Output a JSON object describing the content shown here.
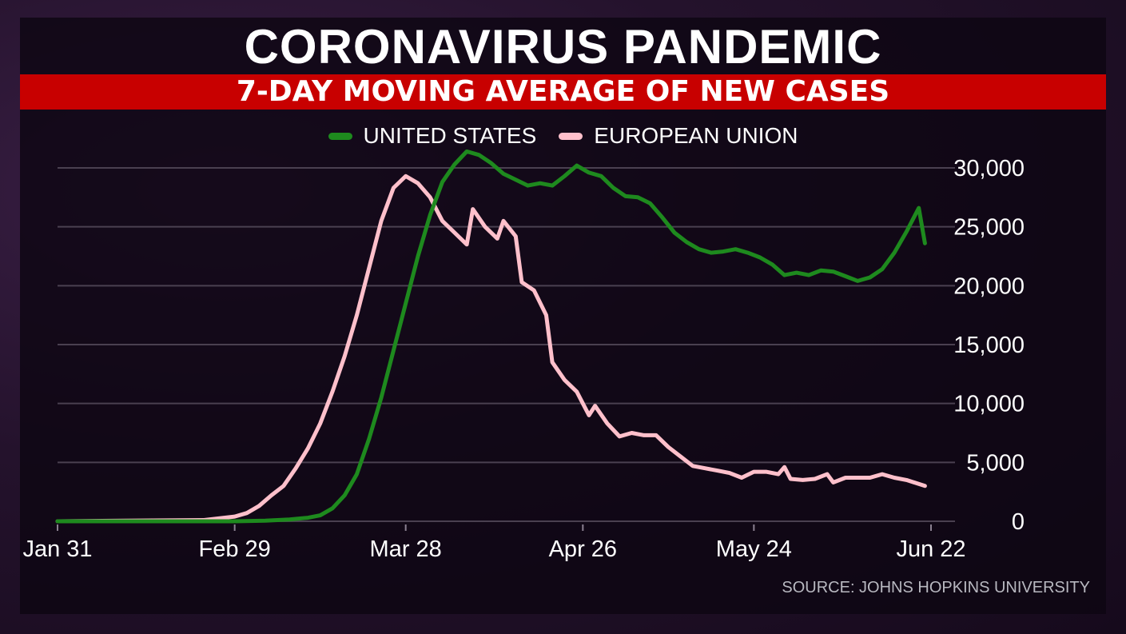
{
  "header": {
    "title": "CORONAVIRUS PANDEMIC",
    "subtitle": "7-DAY MOVING AVERAGE OF NEW CASES"
  },
  "source": "SOURCE: JOHNS HOPKINS UNIVERSITY",
  "colors": {
    "subtitle_bar": "#c80000",
    "us": "#1e8a1e",
    "eu": "#ffc0cb",
    "grid": "#4a4050"
  },
  "chart_data": {
    "type": "line",
    "title": "CORONAVIRUS PANDEMIC",
    "subtitle": "7-DAY MOVING AVERAGE OF NEW CASES",
    "x_ticks": [
      "Jan 31",
      "Feb 29",
      "Mar 28",
      "Apr 26",
      "May 24",
      "Jun 22"
    ],
    "y_ticks": [
      "0",
      "5,000",
      "10,000",
      "15,000",
      "20,000",
      "25,000",
      "30,000"
    ],
    "ylim": [
      0,
      30000
    ],
    "xlim": [
      "2020-01-31",
      "2020-06-22"
    ],
    "grid": true,
    "legend_position": "top-center",
    "series": [
      {
        "name": "UNITED STATES",
        "color": "#1e8a1e",
        "points": [
          [
            "2020-01-31",
            0
          ],
          [
            "2020-02-29",
            0
          ],
          [
            "2020-03-05",
            50
          ],
          [
            "2020-03-09",
            150
          ],
          [
            "2020-03-12",
            300
          ],
          [
            "2020-03-14",
            500
          ],
          [
            "2020-03-16",
            1100
          ],
          [
            "2020-03-18",
            2200
          ],
          [
            "2020-03-20",
            4000
          ],
          [
            "2020-03-22",
            7000
          ],
          [
            "2020-03-24",
            10500
          ],
          [
            "2020-03-26",
            14500
          ],
          [
            "2020-03-28",
            18500
          ],
          [
            "2020-03-30",
            22500
          ],
          [
            "2020-04-01",
            26000
          ],
          [
            "2020-04-03",
            28800
          ],
          [
            "2020-04-05",
            30300
          ],
          [
            "2020-04-07",
            31400
          ],
          [
            "2020-04-09",
            31100
          ],
          [
            "2020-04-11",
            30400
          ],
          [
            "2020-04-13",
            29500
          ],
          [
            "2020-04-15",
            29000
          ],
          [
            "2020-04-17",
            28500
          ],
          [
            "2020-04-19",
            28700
          ],
          [
            "2020-04-21",
            28500
          ],
          [
            "2020-04-23",
            29300
          ],
          [
            "2020-04-25",
            30200
          ],
          [
            "2020-04-27",
            29600
          ],
          [
            "2020-04-29",
            29300
          ],
          [
            "2020-05-01",
            28300
          ],
          [
            "2020-05-03",
            27600
          ],
          [
            "2020-05-05",
            27500
          ],
          [
            "2020-05-07",
            27000
          ],
          [
            "2020-05-09",
            25800
          ],
          [
            "2020-05-11",
            24500
          ],
          [
            "2020-05-13",
            23700
          ],
          [
            "2020-05-15",
            23100
          ],
          [
            "2020-05-17",
            22800
          ],
          [
            "2020-05-19",
            22900
          ],
          [
            "2020-05-21",
            23100
          ],
          [
            "2020-05-23",
            22800
          ],
          [
            "2020-05-25",
            22400
          ],
          [
            "2020-05-27",
            21800
          ],
          [
            "2020-05-29",
            20900
          ],
          [
            "2020-05-31",
            21100
          ],
          [
            "2020-06-02",
            20900
          ],
          [
            "2020-06-04",
            21300
          ],
          [
            "2020-06-06",
            21200
          ],
          [
            "2020-06-08",
            20800
          ],
          [
            "2020-06-10",
            20400
          ],
          [
            "2020-06-12",
            20700
          ],
          [
            "2020-06-14",
            21400
          ],
          [
            "2020-06-16",
            22800
          ],
          [
            "2020-06-18",
            24600
          ],
          [
            "2020-06-20",
            26600
          ],
          [
            "2020-06-21",
            23600
          ]
        ]
      },
      {
        "name": "EUROPEAN UNION",
        "color": "#ffc0cb",
        "points": [
          [
            "2020-01-31",
            0
          ],
          [
            "2020-02-24",
            100
          ],
          [
            "2020-02-29",
            400
          ],
          [
            "2020-03-02",
            700
          ],
          [
            "2020-03-04",
            1300
          ],
          [
            "2020-03-06",
            2200
          ],
          [
            "2020-03-08",
            3000
          ],
          [
            "2020-03-10",
            4500
          ],
          [
            "2020-03-12",
            6200
          ],
          [
            "2020-03-14",
            8300
          ],
          [
            "2020-03-16",
            11000
          ],
          [
            "2020-03-18",
            14000
          ],
          [
            "2020-03-20",
            17500
          ],
          [
            "2020-03-22",
            21500
          ],
          [
            "2020-03-24",
            25500
          ],
          [
            "2020-03-26",
            28300
          ],
          [
            "2020-03-28",
            29300
          ],
          [
            "2020-03-30",
            28700
          ],
          [
            "2020-04-01",
            27500
          ],
          [
            "2020-04-03",
            25500
          ],
          [
            "2020-04-05",
            24500
          ],
          [
            "2020-04-07",
            23500
          ],
          [
            "2020-04-08",
            26500
          ],
          [
            "2020-04-10",
            25000
          ],
          [
            "2020-04-12",
            24000
          ],
          [
            "2020-04-13",
            25500
          ],
          [
            "2020-04-15",
            24200
          ],
          [
            "2020-04-16",
            20300
          ],
          [
            "2020-04-18",
            19600
          ],
          [
            "2020-04-20",
            17500
          ],
          [
            "2020-04-21",
            13500
          ],
          [
            "2020-04-23",
            12000
          ],
          [
            "2020-04-25",
            11000
          ],
          [
            "2020-04-27",
            9000
          ],
          [
            "2020-04-28",
            9800
          ],
          [
            "2020-04-30",
            8300
          ],
          [
            "2020-05-02",
            7200
          ],
          [
            "2020-05-04",
            7500
          ],
          [
            "2020-05-06",
            7300
          ],
          [
            "2020-05-08",
            7300
          ],
          [
            "2020-05-10",
            6300
          ],
          [
            "2020-05-12",
            5500
          ],
          [
            "2020-05-14",
            4700
          ],
          [
            "2020-05-16",
            4500
          ],
          [
            "2020-05-18",
            4300
          ],
          [
            "2020-05-20",
            4100
          ],
          [
            "2020-05-22",
            3700
          ],
          [
            "2020-05-24",
            4200
          ],
          [
            "2020-05-26",
            4200
          ],
          [
            "2020-05-28",
            4000
          ],
          [
            "2020-05-29",
            4600
          ],
          [
            "2020-05-30",
            3600
          ],
          [
            "2020-06-01",
            3500
          ],
          [
            "2020-06-03",
            3600
          ],
          [
            "2020-06-05",
            4000
          ],
          [
            "2020-06-06",
            3300
          ],
          [
            "2020-06-08",
            3700
          ],
          [
            "2020-06-10",
            3700
          ],
          [
            "2020-06-12",
            3700
          ],
          [
            "2020-06-14",
            4000
          ],
          [
            "2020-06-16",
            3700
          ],
          [
            "2020-06-18",
            3500
          ],
          [
            "2020-06-21",
            3000
          ]
        ]
      }
    ]
  }
}
